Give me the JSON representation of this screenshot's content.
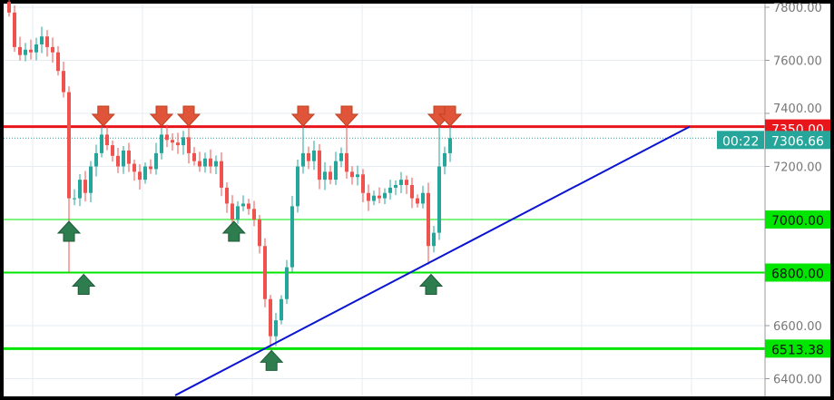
{
  "chart_data": {
    "type": "candlestick",
    "title": "",
    "xlabel": "",
    "ylabel": "",
    "ylim": [
      6370,
      7820
    ],
    "grid": true,
    "y_ticks": [
      "7800.00",
      "7600.00",
      "7400.00",
      "7200.00",
      "6600.00",
      "6400.00"
    ],
    "closes": [
      7780,
      7650,
      7620,
      7640,
      7630,
      7660,
      7690,
      7650,
      7630,
      7560,
      7480,
      7080,
      7080,
      7150,
      7100,
      7200,
      7250,
      7320,
      7280,
      7240,
      7200,
      7260,
      7210,
      7180,
      7150,
      7200,
      7190,
      7250,
      7320,
      7300,
      7290,
      7280,
      7310,
      7250,
      7220,
      7200,
      7230,
      7200,
      7220,
      7120,
      7060,
      7000,
      7050,
      7060,
      7040,
      7000,
      6900,
      6700,
      6560,
      6620,
      6700,
      6820,
      7050,
      7200,
      7250,
      7220,
      7260,
      7150,
      7180,
      7150,
      7220,
      7250,
      7180,
      7160,
      7170,
      7100,
      7070,
      7090,
      7080,
      7100,
      7120,
      7130,
      7150,
      7130,
      7080,
      7060,
      7100,
      6900,
      6950,
      7200,
      7250,
      7306.66
    ],
    "special_wicks": [
      {
        "bar": 11,
        "low": 6800
      },
      {
        "bar": 48,
        "low": 6513.38
      },
      {
        "bar": 77,
        "low": 6830
      },
      {
        "bar": 17,
        "high": 7350
      },
      {
        "bar": 54,
        "high": 7350
      },
      {
        "bar": 62,
        "high": 7350
      },
      {
        "bar": 79,
        "high": 7350
      },
      {
        "bar": 81,
        "high": 7350
      }
    ],
    "horizontal_levels": [
      {
        "price": 7350.0,
        "label": "7350.00",
        "color": "#e8151b",
        "style": "solid-thick"
      },
      {
        "price": 7000.0,
        "label": "7000.00",
        "color": "#00e600",
        "style": "solid-thin"
      },
      {
        "price": 6800.0,
        "label": "6800.00",
        "color": "#00e600",
        "style": "solid"
      },
      {
        "price": 6513.38,
        "label": "6513.38",
        "color": "#00e600",
        "style": "solid-thick"
      }
    ],
    "last_price": {
      "price": 7306.66,
      "label": "7306.66",
      "color": "#26a69a",
      "countdown": "00:22"
    },
    "trendline": {
      "color": "#0a14d2",
      "points": [
        {
          "bar": 30.5,
          "price": 6337
        },
        {
          "bar": 125,
          "price": 7350
        }
      ]
    },
    "resistance_markers": [
      17.3,
      28,
      33,
      54,
      62,
      79,
      81
    ],
    "support_markers": [
      {
        "bar": 11,
        "price": 7000
      },
      {
        "bar": 13.7,
        "price": 6800
      },
      {
        "bar": 41.3,
        "price": 7000
      },
      {
        "bar": 48.2,
        "price": 6513.38
      },
      {
        "bar": 77.5,
        "price": 6800
      }
    ],
    "colors": {
      "up": "#26a69a",
      "down": "#ef5350",
      "arrow_down": "#e0553a",
      "arrow_up": "#2e7d4f"
    }
  }
}
